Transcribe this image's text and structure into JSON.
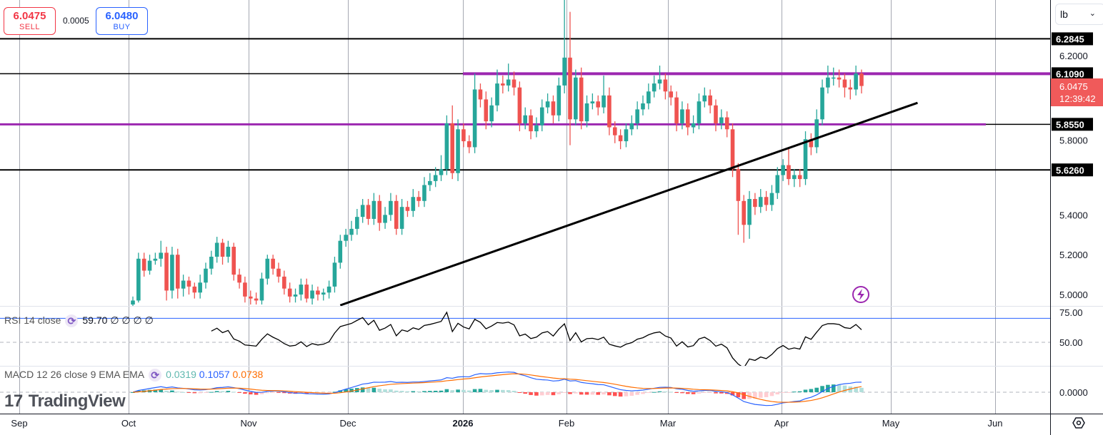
{
  "trade_panel": {
    "sell_price": "6.0475",
    "sell_label": "SELL",
    "spread": "0.0005",
    "buy_price": "6.0480",
    "buy_label": "BUY"
  },
  "unit_selector": {
    "value": "lb",
    "icon": "chevron-down-icon"
  },
  "rsi_legend": {
    "title": "RSI 14 close",
    "value": "59.70",
    "extras": "∅ ∅ ∅ ∅",
    "icon": "refresh-icon"
  },
  "macd_legend": {
    "title": "MACD 12 26 close 9 EMA EMA",
    "histogram": "0.0319",
    "macd": "0.1057",
    "signal": "0.0738",
    "icon": "refresh-icon"
  },
  "watermark": "TradingView",
  "price_tag": {
    "price": "6.0475",
    "countdown": "12:39:42",
    "color": "#f05a5a"
  },
  "colors": {
    "up": "#26a69a",
    "down": "#ef5350",
    "purple_level": "#9c27b0",
    "rsi_line": "#000000",
    "macd_line": "#2962ff",
    "signal_line": "#ff6d00",
    "band": "#2962ff"
  },
  "chart_data": {
    "type": "candlestick",
    "price_axis": {
      "ticks": [
        "6.2000",
        "5.8000",
        "5.4000",
        "5.2000",
        "5.0000"
      ],
      "range": [
        4.95,
        6.45
      ]
    },
    "time_axis": {
      "ticks": [
        "Sep",
        "Oct",
        "Nov",
        "Dec",
        "2026",
        "Feb",
        "Mar",
        "Apr",
        "May",
        "Jun"
      ]
    },
    "levels": [
      {
        "price": 6.2845,
        "label": "6.2845",
        "color": "#000000"
      },
      {
        "price": 6.109,
        "label": "6.1090",
        "color": "#9c27b0"
      },
      {
        "price": 5.855,
        "label": "5.8550",
        "color": "#9c27b0"
      },
      {
        "price": 5.626,
        "label": "5.6260",
        "color": "#000000"
      }
    ],
    "trendline": {
      "from": {
        "bar": 37,
        "price": 4.946
      },
      "to": {
        "bar": 140,
        "price": 5.963
      },
      "color": "#000000"
    },
    "ohlc": [
      [
        4.95,
        4.99,
        4.94,
        4.97
      ],
      [
        4.97,
        5.21,
        4.96,
        5.18
      ],
      [
        5.18,
        5.21,
        5.09,
        5.12
      ],
      [
        5.12,
        5.2,
        5.1,
        5.17
      ],
      [
        5.17,
        5.21,
        5.15,
        5.18
      ],
      [
        5.18,
        5.27,
        5.14,
        5.21
      ],
      [
        5.21,
        5.24,
        4.97,
        5.02
      ],
      [
        5.02,
        5.24,
        4.98,
        5.2
      ],
      [
        5.2,
        5.23,
        4.98,
        5.03
      ],
      [
        5.03,
        5.1,
        4.99,
        5.07
      ],
      [
        5.07,
        5.09,
        5.0,
        5.04
      ],
      [
        5.04,
        5.06,
        4.98,
        5.01
      ],
      [
        5.01,
        5.1,
        4.98,
        5.06
      ],
      [
        5.06,
        5.16,
        5.03,
        5.13
      ],
      [
        5.13,
        5.22,
        5.1,
        5.19
      ],
      [
        5.19,
        5.29,
        5.16,
        5.26
      ],
      [
        5.26,
        5.28,
        5.15,
        5.19
      ],
      [
        5.19,
        5.27,
        5.16,
        5.24
      ],
      [
        5.24,
        5.26,
        5.07,
        5.1
      ],
      [
        5.1,
        5.13,
        5.03,
        5.06
      ],
      [
        5.06,
        5.09,
        4.96,
        4.99
      ],
      [
        4.99,
        5.02,
        4.95,
        4.98
      ],
      [
        4.98,
        5.01,
        4.95,
        4.97
      ],
      [
        4.97,
        5.11,
        4.95,
        5.08
      ],
      [
        5.08,
        5.2,
        5.05,
        5.18
      ],
      [
        5.18,
        5.2,
        5.1,
        5.13
      ],
      [
        5.13,
        5.16,
        5.06,
        5.09
      ],
      [
        5.09,
        5.12,
        5.0,
        5.03
      ],
      [
        5.03,
        5.06,
        4.96,
        4.99
      ],
      [
        4.99,
        5.03,
        4.96,
        5.0
      ],
      [
        5.0,
        5.08,
        4.97,
        5.05
      ],
      [
        5.05,
        5.08,
        4.96,
        4.98
      ],
      [
        4.98,
        5.05,
        4.95,
        5.02
      ],
      [
        5.02,
        5.04,
        4.97,
        5.0
      ],
      [
        5.0,
        5.03,
        4.97,
        5.01
      ],
      [
        5.01,
        5.07,
        4.98,
        5.04
      ],
      [
        5.04,
        5.19,
        5.01,
        5.16
      ],
      [
        5.16,
        5.3,
        5.13,
        5.27
      ],
      [
        5.27,
        5.33,
        5.24,
        5.3
      ],
      [
        5.3,
        5.37,
        5.27,
        5.33
      ],
      [
        5.33,
        5.43,
        5.3,
        5.39
      ],
      [
        5.39,
        5.48,
        5.36,
        5.45
      ],
      [
        5.45,
        5.48,
        5.35,
        5.38
      ],
      [
        5.38,
        5.51,
        5.35,
        5.47
      ],
      [
        5.47,
        5.5,
        5.32,
        5.36
      ],
      [
        5.36,
        5.44,
        5.33,
        5.4
      ],
      [
        5.4,
        5.51,
        5.37,
        5.47
      ],
      [
        5.47,
        5.5,
        5.3,
        5.33
      ],
      [
        5.33,
        5.48,
        5.3,
        5.44
      ],
      [
        5.44,
        5.47,
        5.39,
        5.42
      ],
      [
        5.42,
        5.53,
        5.39,
        5.49
      ],
      [
        5.49,
        5.52,
        5.44,
        5.47
      ],
      [
        5.47,
        5.59,
        5.44,
        5.55
      ],
      [
        5.55,
        5.61,
        5.52,
        5.57
      ],
      [
        5.57,
        5.64,
        5.54,
        5.6
      ],
      [
        5.6,
        5.7,
        5.57,
        5.63
      ],
      [
        5.63,
        5.9,
        5.6,
        5.86
      ],
      [
        5.86,
        5.95,
        5.58,
        5.61
      ],
      [
        5.61,
        5.88,
        5.57,
        5.83
      ],
      [
        5.83,
        5.86,
        5.74,
        5.77
      ],
      [
        5.77,
        5.8,
        5.71,
        5.74
      ],
      [
        5.74,
        6.11,
        5.71,
        6.03
      ],
      [
        6.03,
        6.06,
        5.94,
        5.98
      ],
      [
        5.98,
        6.02,
        5.83,
        5.87
      ],
      [
        5.87,
        5.99,
        5.84,
        5.95
      ],
      [
        5.95,
        6.13,
        5.92,
        6.06
      ],
      [
        6.06,
        6.1,
        6.01,
        6.05
      ],
      [
        6.05,
        6.16,
        6.02,
        6.08
      ],
      [
        6.08,
        6.12,
        6.0,
        6.04
      ],
      [
        6.04,
        6.07,
        5.82,
        5.86
      ],
      [
        5.86,
        5.94,
        5.83,
        5.9
      ],
      [
        5.9,
        5.93,
        5.78,
        5.82
      ],
      [
        5.82,
        5.89,
        5.79,
        5.85
      ],
      [
        5.85,
        5.98,
        5.82,
        5.94
      ],
      [
        5.94,
        6.01,
        5.91,
        5.97
      ],
      [
        5.97,
        6.0,
        5.86,
        5.9
      ],
      [
        5.9,
        6.09,
        5.87,
        6.05
      ],
      [
        6.05,
        6.5,
        6.01,
        6.19
      ],
      [
        6.19,
        6.42,
        5.75,
        5.88
      ],
      [
        5.88,
        6.13,
        5.85,
        6.09
      ],
      [
        6.09,
        6.14,
        5.83,
        5.87
      ],
      [
        5.87,
        6.0,
        5.84,
        5.96
      ],
      [
        5.96,
        6.01,
        5.93,
        5.97
      ],
      [
        5.97,
        6.0,
        5.9,
        5.94
      ],
      [
        5.94,
        6.1,
        5.91,
        6.0
      ],
      [
        6.0,
        6.04,
        5.8,
        5.84
      ],
      [
        5.84,
        5.87,
        5.76,
        5.8
      ],
      [
        5.8,
        5.83,
        5.73,
        5.77
      ],
      [
        5.77,
        5.86,
        5.74,
        5.83
      ],
      [
        5.83,
        5.9,
        5.8,
        5.86
      ],
      [
        5.86,
        5.97,
        5.83,
        5.93
      ],
      [
        5.93,
        6.0,
        5.9,
        5.96
      ],
      [
        5.96,
        6.06,
        5.93,
        6.02
      ],
      [
        6.02,
        6.1,
        5.99,
        6.06
      ],
      [
        6.06,
        6.15,
        6.03,
        6.08
      ],
      [
        6.08,
        6.11,
        5.98,
        6.02
      ],
      [
        6.02,
        6.05,
        5.95,
        5.99
      ],
      [
        5.99,
        6.02,
        5.82,
        5.86
      ],
      [
        5.86,
        5.97,
        5.83,
        5.93
      ],
      [
        5.93,
        5.96,
        5.8,
        5.84
      ],
      [
        5.84,
        5.9,
        5.81,
        5.86
      ],
      [
        5.86,
        6.01,
        5.83,
        5.97
      ],
      [
        5.97,
        6.04,
        5.94,
        6.0
      ],
      [
        6.0,
        6.03,
        5.91,
        5.95
      ],
      [
        5.95,
        5.98,
        5.82,
        5.86
      ],
      [
        5.86,
        5.93,
        5.83,
        5.89
      ],
      [
        5.89,
        5.92,
        5.79,
        5.83
      ],
      [
        5.83,
        5.86,
        5.59,
        5.63
      ],
      [
        5.63,
        5.66,
        5.3,
        5.47
      ],
      [
        5.47,
        5.5,
        5.26,
        5.35
      ],
      [
        5.35,
        5.52,
        5.28,
        5.48
      ],
      [
        5.48,
        5.51,
        5.4,
        5.44
      ],
      [
        5.44,
        5.53,
        5.41,
        5.49
      ],
      [
        5.49,
        5.52,
        5.42,
        5.45
      ],
      [
        5.45,
        5.55,
        5.42,
        5.51
      ],
      [
        5.51,
        5.64,
        5.48,
        5.6
      ],
      [
        5.6,
        5.68,
        5.57,
        5.65
      ],
      [
        5.65,
        5.74,
        5.55,
        5.58
      ],
      [
        5.58,
        5.63,
        5.54,
        5.6
      ],
      [
        5.6,
        5.63,
        5.54,
        5.58
      ],
      [
        5.58,
        5.82,
        5.55,
        5.78
      ],
      [
        5.78,
        5.81,
        5.7,
        5.74
      ],
      [
        5.74,
        5.93,
        5.71,
        5.88
      ],
      [
        5.88,
        6.08,
        5.85,
        6.04
      ],
      [
        6.04,
        6.15,
        6.01,
        6.09
      ],
      [
        6.09,
        6.14,
        6.05,
        6.09
      ],
      [
        6.09,
        6.13,
        6.04,
        6.08
      ],
      [
        6.08,
        6.11,
        5.99,
        6.04
      ],
      [
        6.04,
        6.08,
        5.98,
        6.03
      ],
      [
        6.03,
        6.15,
        6.0,
        6.11
      ],
      [
        6.11,
        6.13,
        6.01,
        6.0475
      ]
    ],
    "rsi": {
      "period": 14,
      "axis_ticks": [
        "75.00",
        "50.00"
      ],
      "bands": [
        70,
        30
      ],
      "mid": 50
    },
    "macd": {
      "fast": 12,
      "slow": 26,
      "signal": 9,
      "axis_ticks": [
        "0.0000"
      ]
    }
  }
}
